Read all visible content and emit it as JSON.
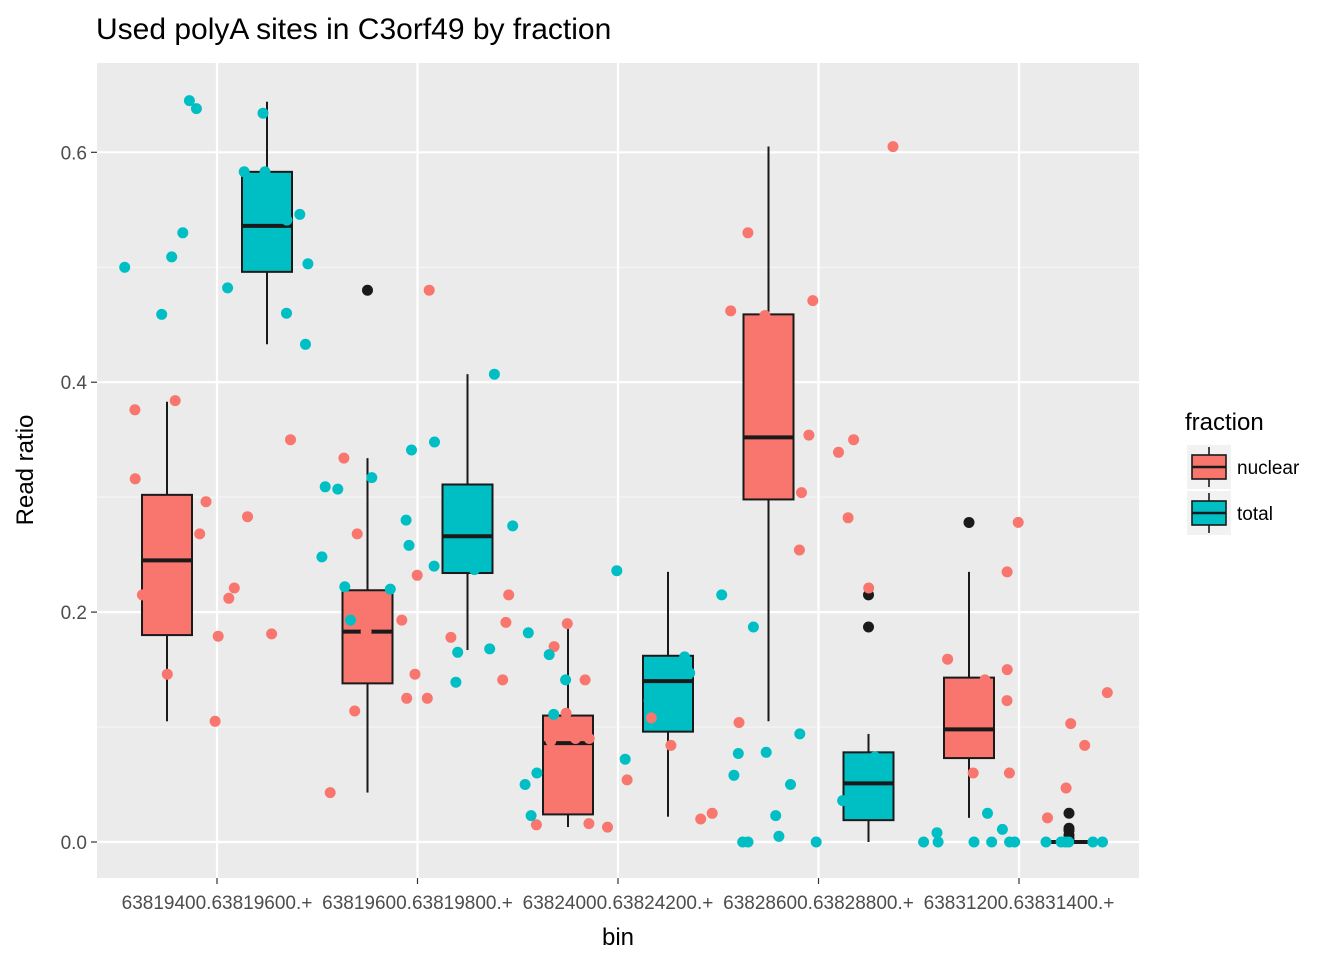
{
  "chart_data": {
    "type": "boxplot",
    "title": "Used polyA sites in C3orf49 by fraction",
    "xlabel": "bin",
    "ylabel": "Read ratio",
    "categories": [
      "63819400.63819600.+",
      "63819600.63819800.+",
      "63824000.63824200.+",
      "63828600.63828800.+",
      "63831200.63831400.+"
    ],
    "yticks": [
      "0.0",
      "0.2",
      "0.4",
      "0.6"
    ],
    "ylim": [
      -0.03,
      0.67
    ],
    "grid": true,
    "legend": {
      "title": "fraction",
      "position": "right",
      "entries": [
        {
          "label": "nuclear",
          "color": "#F8766D"
        },
        {
          "label": "total",
          "color": "#00BFC4"
        }
      ]
    },
    "series": [
      {
        "name": "nuclear",
        "color": "#F8766D",
        "boxes": [
          {
            "min": 0.105,
            "q1": 0.18,
            "median": 0.245,
            "q3": 0.302,
            "max": 0.383,
            "outliers": []
          },
          {
            "min": 0.043,
            "q1": 0.138,
            "median": 0.183,
            "q3": 0.219,
            "max": 0.334,
            "outliers": [
              0.48
            ]
          },
          {
            "min": 0.013,
            "q1": 0.024,
            "median": 0.086,
            "q3": 0.11,
            "max": 0.19,
            "outliers": []
          },
          {
            "min": 0.105,
            "q1": 0.298,
            "median": 0.352,
            "q3": 0.459,
            "max": 0.605,
            "outliers": []
          },
          {
            "min": 0.021,
            "q1": 0.073,
            "median": 0.098,
            "q3": 0.143,
            "max": 0.235,
            "outliers": [
              0.278
            ]
          }
        ]
      },
      {
        "name": "total",
        "color": "#00BFC4",
        "boxes": [
          {
            "min": 0.433,
            "q1": 0.496,
            "median": 0.536,
            "q3": 0.583,
            "max": 0.644,
            "outliers": []
          },
          {
            "min": 0.167,
            "q1": 0.234,
            "median": 0.266,
            "q3": 0.311,
            "max": 0.407,
            "outliers": []
          },
          {
            "min": 0.022,
            "q1": 0.096,
            "median": 0.14,
            "q3": 0.162,
            "max": 0.235,
            "outliers": []
          },
          {
            "min": 0.0,
            "q1": 0.019,
            "median": 0.051,
            "q3": 0.078,
            "max": 0.094,
            "outliers": [
              0.187,
              0.215
            ]
          },
          {
            "min": 0.0,
            "q1": 0.0,
            "median": 0.0,
            "q3": 0.0,
            "max": 0.0,
            "outliers": [
              0.025,
              0.012,
              0.01,
              0.006,
              0.003
            ]
          }
        ]
      }
    ],
    "jitter_points": {
      "nuclear": [
        [
          0,
          0.105
        ],
        [
          0,
          0.212
        ],
        [
          0,
          0.215
        ],
        [
          0,
          0.146
        ],
        [
          0,
          0.296
        ],
        [
          0,
          0.179
        ],
        [
          0,
          0.316
        ],
        [
          0,
          0.35
        ],
        [
          0,
          0.221
        ],
        [
          0,
          0.268
        ],
        [
          0,
          0.384
        ],
        [
          0,
          0.181
        ],
        [
          0,
          0.283
        ],
        [
          0,
          0.376
        ],
        [
          1,
          0.232
        ],
        [
          1,
          0.183
        ],
        [
          1,
          0.178
        ],
        [
          1,
          0.175
        ],
        [
          1,
          0.48
        ],
        [
          1,
          0.146
        ],
        [
          1,
          0.114
        ],
        [
          1,
          0.043
        ],
        [
          1,
          0.141
        ],
        [
          1,
          0.215
        ],
        [
          1,
          0.334
        ],
        [
          1,
          0.125
        ],
        [
          1,
          0.191
        ],
        [
          1,
          0.268
        ],
        [
          1,
          0.193
        ],
        [
          1,
          0.125
        ],
        [
          2,
          0.108
        ],
        [
          2,
          0.09
        ],
        [
          2,
          0.17
        ],
        [
          2,
          0.025
        ],
        [
          2,
          0.013
        ],
        [
          2,
          0.112
        ],
        [
          2,
          0.054
        ],
        [
          2,
          0.141
        ],
        [
          2,
          0.088
        ],
        [
          2,
          0.084
        ],
        [
          2,
          0.09
        ],
        [
          2,
          0.016
        ],
        [
          2,
          0.015
        ],
        [
          2,
          0.02
        ],
        [
          2,
          0.19
        ],
        [
          3,
          0.605
        ],
        [
          3,
          0.471
        ],
        [
          3,
          0.411
        ],
        [
          3,
          0.339
        ],
        [
          3,
          0.254
        ],
        [
          3,
          0.221
        ],
        [
          3,
          0.282
        ],
        [
          3,
          0.53
        ],
        [
          3,
          0.458
        ],
        [
          3,
          0.354
        ],
        [
          3,
          0.104
        ],
        [
          3,
          0.462
        ],
        [
          3,
          0.304
        ],
        [
          3,
          0.35
        ],
        [
          4,
          0.021
        ],
        [
          4,
          0.13
        ],
        [
          4,
          0.141
        ],
        [
          4,
          0.123
        ],
        [
          4,
          0.278
        ],
        [
          4,
          0.235
        ],
        [
          4,
          0.084
        ],
        [
          4,
          0.06
        ],
        [
          4,
          0.15
        ],
        [
          4,
          0.06
        ],
        [
          4,
          0.09
        ],
        [
          4,
          0.047
        ],
        [
          4,
          0.159
        ],
        [
          4,
          0.089
        ],
        [
          4,
          0.103
        ]
      ],
      "total": [
        [
          0,
          0.46
        ],
        [
          0,
          0.503
        ],
        [
          0,
          0.546
        ],
        [
          0,
          0.541
        ],
        [
          0,
          0.583
        ],
        [
          0,
          0.583
        ],
        [
          0,
          0.482
        ],
        [
          0,
          0.5
        ],
        [
          0,
          0.53
        ],
        [
          0,
          0.645
        ],
        [
          0,
          0.459
        ],
        [
          0,
          0.638
        ],
        [
          0,
          0.546
        ],
        [
          0,
          0.634
        ],
        [
          0,
          0.509
        ],
        [
          0,
          0.433
        ],
        [
          1,
          0.248
        ],
        [
          1,
          0.22
        ],
        [
          1,
          0.24
        ],
        [
          1,
          0.28
        ],
        [
          1,
          0.307
        ],
        [
          1,
          0.275
        ],
        [
          1,
          0.258
        ],
        [
          1,
          0.168
        ],
        [
          1,
          0.348
        ],
        [
          1,
          0.341
        ],
        [
          1,
          0.222
        ],
        [
          1,
          0.237
        ],
        [
          1,
          0.407
        ],
        [
          1,
          0.317
        ],
        [
          1,
          0.309
        ],
        [
          1,
          0.193
        ],
        [
          1,
          0.165
        ],
        [
          1,
          0.139
        ],
        [
          2,
          0.123
        ],
        [
          2,
          0.147
        ],
        [
          2,
          0.141
        ],
        [
          2,
          0.104
        ],
        [
          2,
          0.111
        ],
        [
          2,
          0.182
        ],
        [
          2,
          0.06
        ],
        [
          2,
          0.05
        ],
        [
          2,
          0.072
        ],
        [
          2,
          0.148
        ],
        [
          2,
          0.161
        ],
        [
          2,
          0.163
        ],
        [
          2,
          0.236
        ],
        [
          2,
          0.023
        ],
        [
          3,
          0.023
        ],
        [
          3,
          0.0
        ],
        [
          3,
          0.058
        ],
        [
          3,
          0.05
        ],
        [
          3,
          0.078
        ],
        [
          3,
          0.005
        ],
        [
          3,
          0.074
        ],
        [
          3,
          0.0
        ],
        [
          3,
          0.187
        ],
        [
          3,
          0.215
        ],
        [
          3,
          0.036
        ],
        [
          3,
          0.077
        ],
        [
          3,
          0.094
        ],
        [
          3,
          0.0
        ],
        [
          4,
          0.0
        ],
        [
          4,
          0.011
        ],
        [
          4,
          0.0
        ],
        [
          4,
          0.0
        ],
        [
          4,
          0.0
        ],
        [
          4,
          0.0
        ],
        [
          4,
          0.025
        ],
        [
          4,
          0.0
        ],
        [
          4,
          0.0
        ],
        [
          4,
          0.0
        ],
        [
          4,
          0.0
        ],
        [
          4,
          0.0
        ],
        [
          4,
          0.008
        ],
        [
          4,
          0.0
        ],
        [
          4,
          0.0
        ]
      ]
    }
  }
}
